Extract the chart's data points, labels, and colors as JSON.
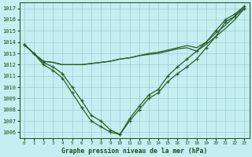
{
  "title": "Graphe pression niveau de la mer (hPa)",
  "xlabel_hours": [
    0,
    1,
    2,
    3,
    4,
    5,
    6,
    7,
    8,
    9,
    10,
    11,
    12,
    13,
    14,
    15,
    16,
    17,
    18,
    19,
    20,
    21,
    22,
    23
  ],
  "ylim": [
    1005.5,
    1017.5
  ],
  "yticks": [
    1006,
    1007,
    1008,
    1009,
    1010,
    1011,
    1012,
    1013,
    1014,
    1015,
    1016,
    1017
  ],
  "bg_color": "#c5eef0",
  "grid_color": "#9ecdd4",
  "line_color": "#2a5e2a",
  "text_color": "#1a4a1a",
  "series_v1": [
    1013.8,
    1013.0,
    1012.2,
    1011.8,
    1011.2,
    1010.0,
    1008.8,
    1007.5,
    1007.0,
    1006.2,
    1005.8,
    1007.0,
    1008.0,
    1009.0,
    1009.5,
    1010.5,
    1011.2,
    1011.8,
    1012.5,
    1013.5,
    1014.5,
    1015.8,
    1016.3,
    1017.0
  ],
  "series_v2": [
    1013.8,
    1013.0,
    1012.0,
    1011.5,
    1010.8,
    1009.5,
    1008.2,
    1007.0,
    1006.5,
    1006.0,
    1005.8,
    1007.2,
    1008.3,
    1009.3,
    1009.8,
    1011.0,
    1011.8,
    1012.5,
    1013.2,
    1014.0,
    1015.0,
    1016.0,
    1016.5,
    1017.2
  ],
  "series_f1": [
    1013.8,
    1013.0,
    1012.3,
    1012.2,
    1012.0,
    1012.0,
    1012.0,
    1012.1,
    1012.2,
    1012.3,
    1012.5,
    1012.6,
    1012.8,
    1012.9,
    1013.0,
    1013.2,
    1013.4,
    1013.5,
    1013.2,
    1013.8,
    1014.5,
    1015.2,
    1016.0,
    1017.0
  ],
  "series_f2": [
    1013.8,
    1013.0,
    1012.3,
    1012.2,
    1012.0,
    1012.0,
    1012.0,
    1012.1,
    1012.2,
    1012.3,
    1012.5,
    1012.6,
    1012.8,
    1013.0,
    1013.1,
    1013.3,
    1013.5,
    1013.7,
    1013.5,
    1014.0,
    1014.8,
    1015.5,
    1016.3,
    1017.2
  ]
}
